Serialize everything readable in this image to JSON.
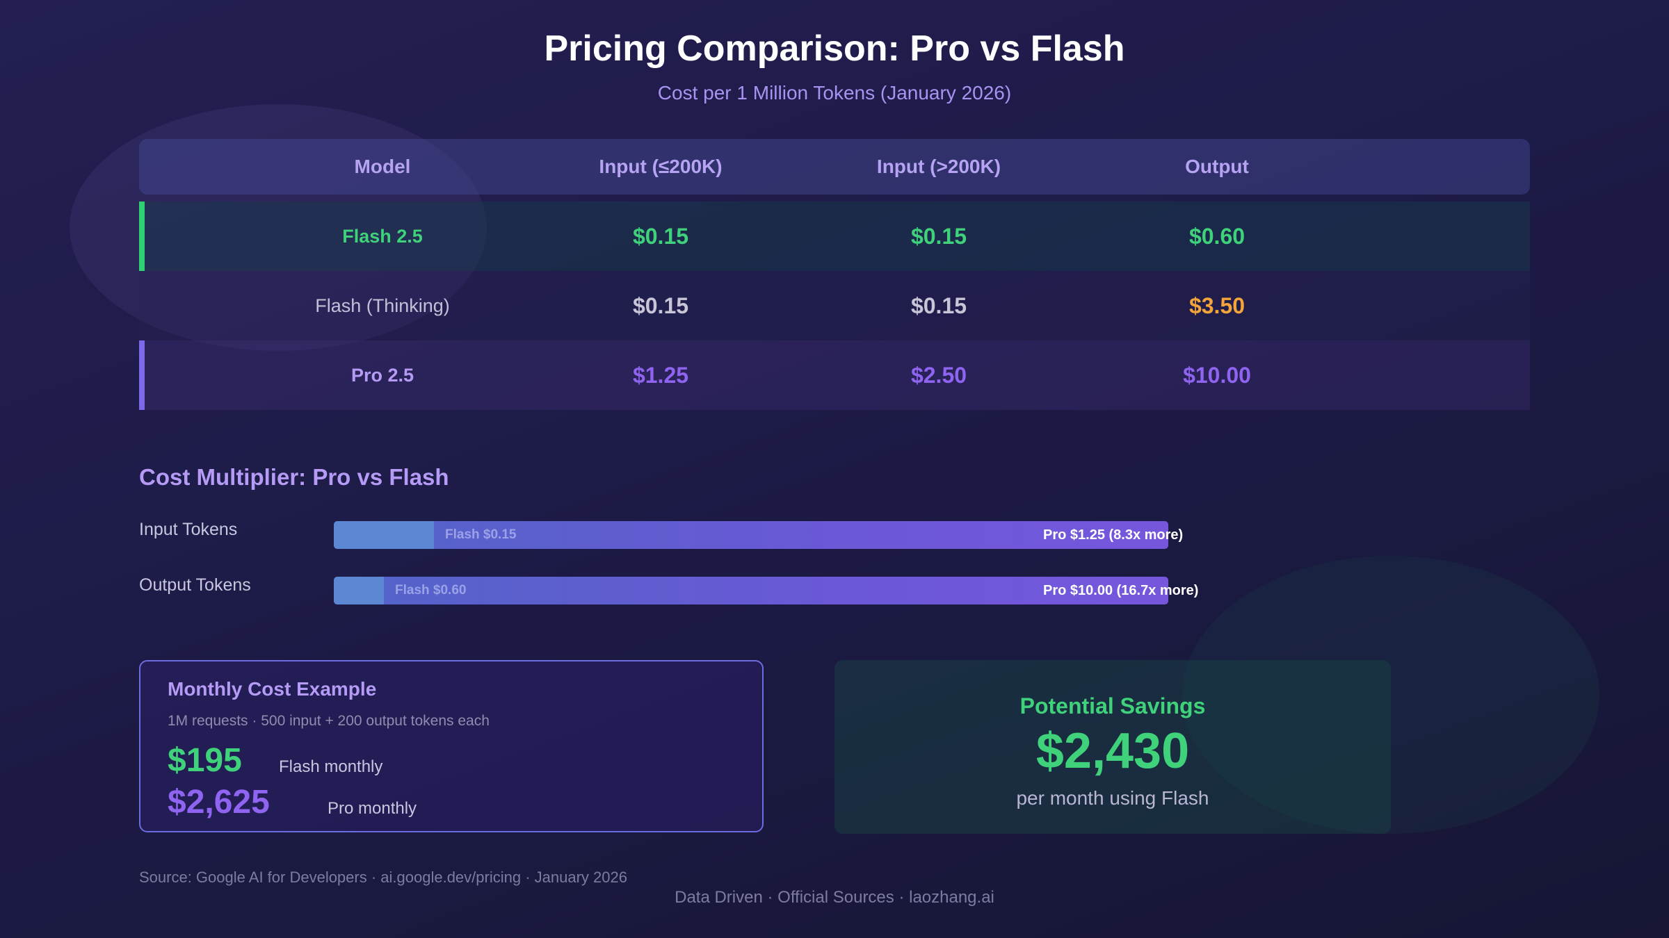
{
  "title": "Pricing Comparison: Pro vs Flash",
  "subtitle": "Cost per 1 Million Tokens (January 2026)",
  "colors": {
    "flash": "#3fd27a",
    "pro": "#8e64f0",
    "pro_light": "#b59bf5",
    "thinking_model": "#c2c0d8",
    "thinking_value": "#c7c5d6",
    "thinking_output": "#f3a43a",
    "accent_flash": "#2fcf73",
    "accent_pro": "#7c68e8"
  },
  "chart_data": [
    {
      "type": "table",
      "columns": [
        "Model",
        "Input (≤200K)",
        "Input (>200K)",
        "Output"
      ],
      "rows": [
        {
          "model": "Flash 2.5",
          "input_le_200k": "$0.15",
          "input_gt_200k": "$0.15",
          "output": "$0.60"
        },
        {
          "model": "Flash (Thinking)",
          "input_le_200k": "$0.15",
          "input_gt_200k": "$0.15",
          "output": "$3.50"
        },
        {
          "model": "Pro 2.5",
          "input_le_200k": "$1.25",
          "input_gt_200k": "$2.50",
          "output": "$10.00"
        }
      ]
    },
    {
      "type": "bar",
      "title": "Cost Multiplier: Pro vs Flash",
      "categories": [
        "Input Tokens",
        "Output Tokens"
      ],
      "series": [
        {
          "name": "Flash",
          "values": [
            0.15,
            0.6
          ],
          "labels": [
            "Flash $0.15",
            "Flash $0.60"
          ]
        },
        {
          "name": "Pro",
          "values": [
            1.25,
            10.0
          ],
          "labels": [
            "Pro $1.25 (8.3x more)",
            "Pro $10.00 (16.7x more)"
          ]
        }
      ],
      "flash_share": [
        0.12,
        0.06
      ]
    }
  ],
  "monthly": {
    "title": "Monthly Cost Example",
    "note": "1M requests · 500 input + 200 output tokens each",
    "flash_value": "$195",
    "flash_label": "Flash monthly",
    "pro_value": "$2,625",
    "pro_label": "Pro monthly"
  },
  "savings": {
    "title": "Potential Savings",
    "amount": "$2,430",
    "caption": "per month using Flash"
  },
  "source": "Source: Google AI for Developers · ai.google.dev/pricing · January 2026",
  "footer": "Data Driven · Official Sources · laozhang.ai"
}
